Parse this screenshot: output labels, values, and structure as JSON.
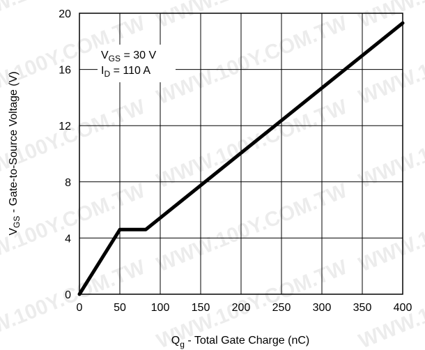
{
  "chart_data": {
    "type": "line",
    "x": [
      0,
      50,
      82,
      400
    ],
    "y": [
      0,
      4.6,
      4.6,
      19.3
    ],
    "xlim": [
      0,
      400
    ],
    "ylim": [
      0,
      20
    ],
    "xticks": [
      "0",
      "50",
      "100",
      "150",
      "200",
      "250",
      "300",
      "350",
      "400"
    ],
    "yticks": [
      "0",
      "4",
      "8",
      "12",
      "16",
      "20"
    ],
    "xlabel": {
      "main": "Q",
      "sub": "g",
      "rest": " - Total Gate Charge (nC)"
    },
    "ylabel": {
      "main": "V",
      "sub": "GS",
      "rest": " - Gate-to-Source Voltage (V)"
    },
    "annotations": [
      {
        "main": "V",
        "sub": "GS",
        "rest": " = 30 V"
      },
      {
        "main": "I",
        "sub": "D",
        "rest": " = 110 A"
      }
    ],
    "grid": true,
    "watermark": "WWW.100Y.COM.TW",
    "line_color": "#000000"
  }
}
